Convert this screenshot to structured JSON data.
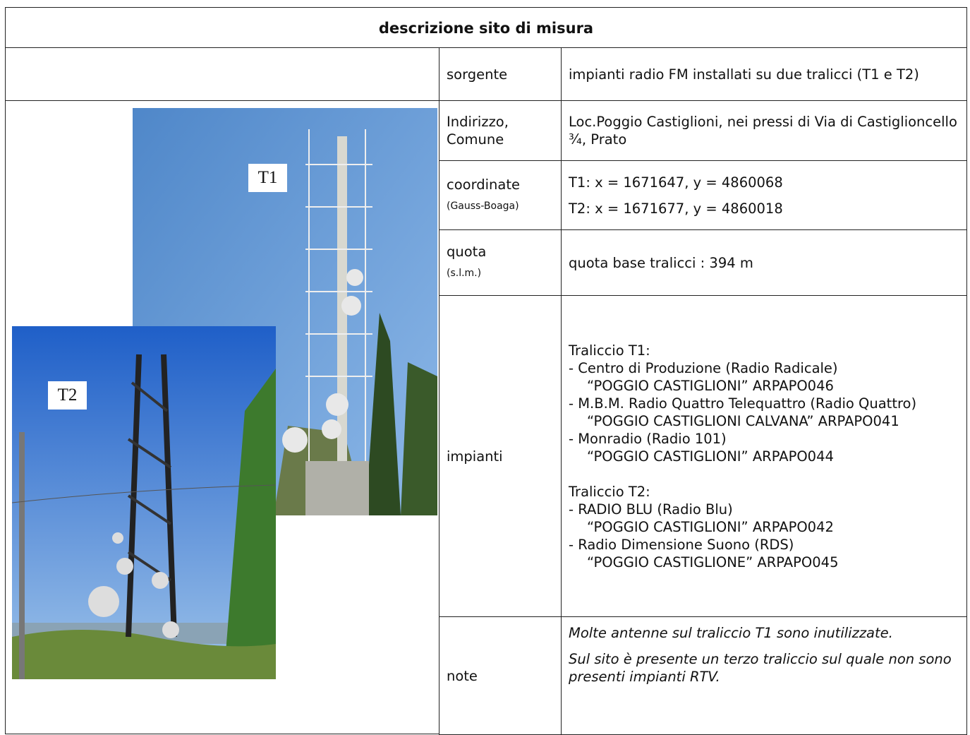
{
  "title": "descrizione sito di misura",
  "photos": {
    "t1_label": "T1",
    "t2_label": "T2"
  },
  "table": {
    "rows": [
      {
        "label": "sorgente",
        "lines": [
          "impianti radio FM installati su due tralicci (T1 e T2)"
        ]
      },
      {
        "label": "Indirizzo, Comune",
        "lines": [
          "Loc.Poggio Castiglioni, nei pressi di Via di Castiglioncello ¾, Prato"
        ]
      },
      {
        "label": "coordinate",
        "sublabel": "(Gauss-Boaga)",
        "lines": [
          "T1: x = 1671647, y = 4860068",
          "T2: x = 1671677, y = 4860018"
        ]
      },
      {
        "label": "quota",
        "sublabel": "(s.l.m.)",
        "lines": [
          "quota base tralicci : 394 m"
        ]
      },
      {
        "label": "impianti",
        "blocks": [
          {
            "heading": "Traliccio T1:",
            "items": [
              {
                "name": "- Centro di Produzione (Radio Radicale)",
                "code": "“POGGIO CASTIGLIONI” ARPAPO046"
              },
              {
                "name": "- M.B.M. Radio Quattro Telequattro (Radio Quattro)",
                "code": "“POGGIO CASTIGLIONI CALVANA” ARPAPO041"
              },
              {
                "name": "- Monradio (Radio 101)",
                "code": "“POGGIO CASTIGLIONI” ARPAPO044"
              }
            ]
          },
          {
            "heading": "Traliccio T2:",
            "items": [
              {
                "name": "- RADIO BLU (Radio Blu)",
                "code": "“POGGIO CASTIGLIONI” ARPAPO042"
              },
              {
                "name": "- Radio Dimensione Suono (RDS)",
                "code": "“POGGIO CASTIGLIONE” ARPAPO045"
              }
            ]
          }
        ]
      },
      {
        "label": "note",
        "notes": [
          "Molte antenne sul traliccio T1 sono inutilizzate.",
          "Sul sito è presente un terzo traliccio sul quale non sono presenti  impianti RTV."
        ]
      }
    ]
  }
}
